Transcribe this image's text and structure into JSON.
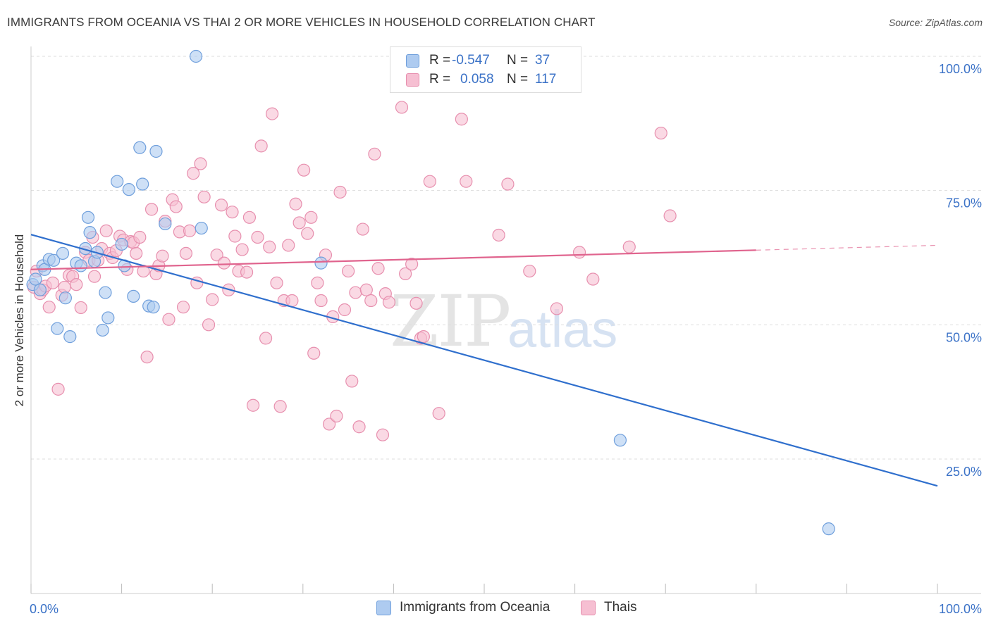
{
  "title": "IMMIGRANTS FROM OCEANIA VS THAI 2 OR MORE VEHICLES IN HOUSEHOLD CORRELATION CHART",
  "source": "Source: ZipAtlas.com",
  "watermark": {
    "zip": "ZIP",
    "atlas": "atlas"
  },
  "legend_top": [
    {
      "r_label": "R =",
      "r_value": "-0.547",
      "n_label": "N =",
      "n_value": "37"
    },
    {
      "r_label": "R =",
      "r_value": "0.058",
      "n_label": "N =",
      "n_value": "117"
    }
  ],
  "legend_bottom": [
    {
      "name": "Immigrants from Oceania"
    },
    {
      "name": "Thais"
    }
  ],
  "colors": {
    "blue_fill": "#aecbf0",
    "blue_stroke": "#6f9fdc",
    "blue_line": "#2f6fcd",
    "pink_fill": "#f6bfd2",
    "pink_stroke": "#e78fae",
    "pink_line": "#e0648e",
    "grid": "#dddddd",
    "tick_label": "#3b72c7"
  },
  "chart_data": {
    "type": "scatter",
    "title": "IMMIGRANTS FROM OCEANIA VS THAI 2 OR MORE VEHICLES IN HOUSEHOLD CORRELATION CHART",
    "xlabel": "",
    "ylabel": "2 or more Vehicles in Household",
    "xlim": [
      0,
      100
    ],
    "ylim": [
      0,
      104
    ],
    "x_tick_labels": [
      "0.0%",
      "100.0%"
    ],
    "y_ticks": [
      25,
      50,
      75,
      100
    ],
    "y_tick_labels": [
      "25.0%",
      "50.0%",
      "75.0%",
      "100.0%"
    ],
    "grid": true,
    "legend_position": "top-center and bottom",
    "series": [
      {
        "name": "Immigrants from Oceania",
        "points": [
          [
            0.2,
            57.5
          ],
          [
            0.5,
            58.5
          ],
          [
            1.0,
            56.5
          ],
          [
            1.3,
            61.0
          ],
          [
            1.5,
            60.3
          ],
          [
            2.0,
            62.2
          ],
          [
            2.5,
            62.0
          ],
          [
            2.9,
            49.3
          ],
          [
            3.5,
            63.3
          ],
          [
            3.8,
            55.0
          ],
          [
            4.3,
            47.8
          ],
          [
            5.0,
            61.5
          ],
          [
            5.5,
            61.0
          ],
          [
            6.0,
            64.2
          ],
          [
            6.3,
            70.0
          ],
          [
            6.5,
            67.2
          ],
          [
            7.0,
            61.8
          ],
          [
            7.3,
            63.5
          ],
          [
            7.9,
            49.0
          ],
          [
            8.2,
            56.0
          ],
          [
            8.5,
            51.3
          ],
          [
            9.5,
            76.7
          ],
          [
            10.0,
            65.0
          ],
          [
            10.3,
            61.0
          ],
          [
            10.8,
            75.2
          ],
          [
            11.3,
            55.3
          ],
          [
            12.0,
            83.0
          ],
          [
            12.3,
            76.2
          ],
          [
            13.0,
            53.5
          ],
          [
            13.5,
            53.3
          ],
          [
            13.8,
            82.3
          ],
          [
            14.8,
            68.8
          ],
          [
            18.2,
            100.0
          ],
          [
            18.8,
            68.0
          ],
          [
            32.0,
            61.5
          ],
          [
            65.0,
            28.5
          ],
          [
            88.0,
            12.0
          ]
        ]
      },
      {
        "name": "Thais",
        "points": [
          [
            0.3,
            57.0
          ],
          [
            0.6,
            60.0
          ],
          [
            1.0,
            55.8
          ],
          [
            1.3,
            56.5
          ],
          [
            1.6,
            57.2
          ],
          [
            2.0,
            53.3
          ],
          [
            2.4,
            57.8
          ],
          [
            3.0,
            38.0
          ],
          [
            3.4,
            55.5
          ],
          [
            3.7,
            57.0
          ],
          [
            4.2,
            59.2
          ],
          [
            4.6,
            59.0
          ],
          [
            5.0,
            57.5
          ],
          [
            5.5,
            53.2
          ],
          [
            6.0,
            63.5
          ],
          [
            6.4,
            62.0
          ],
          [
            6.8,
            66.3
          ],
          [
            7.0,
            59.0
          ],
          [
            7.4,
            62.0
          ],
          [
            7.8,
            64.2
          ],
          [
            8.3,
            67.5
          ],
          [
            8.7,
            63.3
          ],
          [
            9.0,
            62.5
          ],
          [
            9.4,
            63.8
          ],
          [
            9.8,
            66.5
          ],
          [
            10.2,
            65.8
          ],
          [
            10.6,
            60.3
          ],
          [
            11.0,
            65.5
          ],
          [
            11.3,
            65.3
          ],
          [
            11.6,
            63.3
          ],
          [
            12.0,
            66.3
          ],
          [
            12.4,
            60.0
          ],
          [
            12.8,
            44.0
          ],
          [
            13.3,
            71.5
          ],
          [
            13.8,
            59.5
          ],
          [
            14.1,
            61.0
          ],
          [
            14.5,
            62.8
          ],
          [
            14.8,
            69.3
          ],
          [
            15.2,
            51.0
          ],
          [
            15.6,
            73.3
          ],
          [
            16.0,
            72.0
          ],
          [
            16.4,
            67.3
          ],
          [
            16.8,
            53.3
          ],
          [
            17.1,
            63.3
          ],
          [
            17.5,
            67.5
          ],
          [
            17.9,
            78.2
          ],
          [
            18.3,
            57.8
          ],
          [
            18.7,
            80.0
          ],
          [
            19.1,
            73.8
          ],
          [
            19.6,
            50.0
          ],
          [
            20.0,
            54.7
          ],
          [
            20.5,
            63.0
          ],
          [
            21.0,
            72.3
          ],
          [
            21.3,
            61.5
          ],
          [
            21.8,
            56.5
          ],
          [
            22.2,
            71.0
          ],
          [
            22.5,
            66.5
          ],
          [
            22.9,
            60.0
          ],
          [
            23.3,
            64.0
          ],
          [
            23.8,
            59.8
          ],
          [
            24.1,
            70.0
          ],
          [
            24.5,
            35.0
          ],
          [
            25.0,
            66.3
          ],
          [
            25.4,
            83.3
          ],
          [
            25.9,
            47.5
          ],
          [
            26.3,
            64.5
          ],
          [
            26.6,
            89.3
          ],
          [
            27.1,
            57.8
          ],
          [
            27.5,
            34.8
          ],
          [
            27.9,
            54.5
          ],
          [
            28.4,
            64.8
          ],
          [
            28.8,
            54.5
          ],
          [
            29.2,
            72.5
          ],
          [
            29.6,
            69.0
          ],
          [
            30.1,
            78.8
          ],
          [
            30.5,
            67.0
          ],
          [
            30.9,
            70.0
          ],
          [
            31.2,
            44.7
          ],
          [
            31.6,
            57.8
          ],
          [
            32.0,
            54.5
          ],
          [
            32.5,
            63.0
          ],
          [
            32.9,
            31.5
          ],
          [
            33.3,
            51.5
          ],
          [
            33.7,
            33.0
          ],
          [
            34.1,
            74.7
          ],
          [
            34.6,
            52.8
          ],
          [
            35.0,
            60.0
          ],
          [
            35.4,
            39.5
          ],
          [
            35.8,
            56.0
          ],
          [
            36.2,
            31.0
          ],
          [
            36.6,
            67.8
          ],
          [
            37.0,
            56.5
          ],
          [
            37.5,
            54.5
          ],
          [
            37.9,
            81.8
          ],
          [
            38.3,
            60.5
          ],
          [
            38.8,
            29.5
          ],
          [
            39.1,
            55.8
          ],
          [
            39.5,
            54.2
          ],
          [
            40.9,
            90.5
          ],
          [
            41.3,
            59.5
          ],
          [
            42.0,
            61.3
          ],
          [
            42.5,
            54.0
          ],
          [
            43.0,
            47.5
          ],
          [
            43.3,
            47.8
          ],
          [
            44.0,
            76.7
          ],
          [
            45.0,
            33.5
          ],
          [
            47.5,
            88.3
          ],
          [
            48.0,
            76.7
          ],
          [
            51.6,
            66.7
          ],
          [
            52.6,
            76.2
          ],
          [
            55.0,
            60.0
          ],
          [
            58.0,
            53.0
          ],
          [
            60.5,
            63.5
          ],
          [
            62.0,
            58.5
          ],
          [
            66.0,
            64.5
          ],
          [
            69.5,
            85.7
          ],
          [
            70.5,
            70.3
          ]
        ]
      }
    ],
    "trendlines": [
      {
        "series": "Immigrants from Oceania",
        "x0": 0,
        "y0": 66.8,
        "x1": 100,
        "y1": 20.0,
        "dashed_from": null
      },
      {
        "series": "Thais",
        "x0": 0,
        "y0": 60.3,
        "x1": 100,
        "y1": 64.8,
        "dashed_from": 80
      }
    ]
  }
}
